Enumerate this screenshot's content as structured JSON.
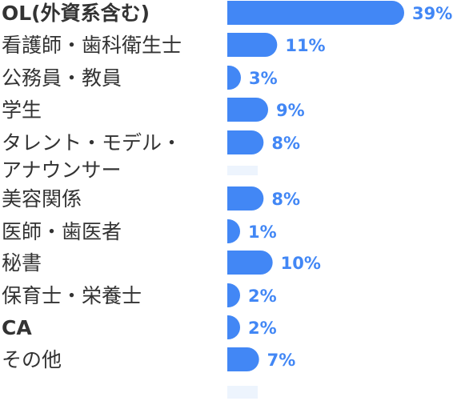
{
  "chart_data": {
    "type": "bar",
    "orientation": "horizontal",
    "categories": [
      "OL(外資系含む)",
      "看護師・歯科衛生士",
      "公務員・教員",
      "学生",
      "タレント・モデル・アナウンサー",
      "美容関係",
      "医師・歯医者",
      "秘書",
      "保育士・栄養士",
      "CA",
      "その他"
    ],
    "category_label_lines": [
      [
        "OL(外資系含む)"
      ],
      [
        "看護師・歯科衛生士"
      ],
      [
        "公務員・教員"
      ],
      [
        "学生"
      ],
      [
        "タレント・モデル・",
        "アナウンサー"
      ],
      [
        "美容関係"
      ],
      [
        "医師・歯医者"
      ],
      [
        "秘書"
      ],
      [
        "保育士・栄養士"
      ],
      [
        "CA"
      ],
      [
        "その他"
      ]
    ],
    "values": [
      39,
      11,
      3,
      9,
      8,
      8,
      1,
      10,
      2,
      2,
      7
    ],
    "value_labels": [
      "39%",
      "11%",
      "3%",
      "9%",
      "8%",
      "8%",
      "1%",
      "10%",
      "2%",
      "2%",
      "7%"
    ],
    "unit": "%",
    "xlim": [
      0,
      41
    ],
    "grid": false,
    "legend": "none",
    "colors": {
      "bar": "#4287f5",
      "value_label": "#4287f5",
      "category_label": "#333333",
      "placeholder": "#edf4fd"
    }
  }
}
